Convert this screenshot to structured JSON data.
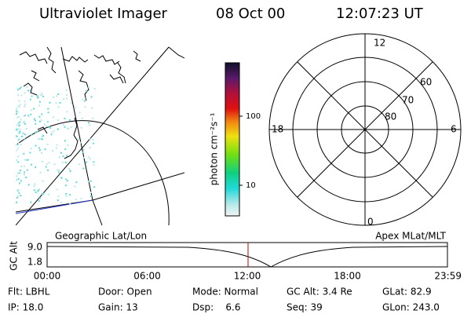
{
  "header": {
    "title": "Ultraviolet Imager",
    "date": "08 Oct 00",
    "time": "12:07:23 UT"
  },
  "colorbar": {
    "label": "photon cm⁻²s⁻¹",
    "ticks": [
      "100",
      "10"
    ]
  },
  "polar": {
    "mlt_labels": [
      "12",
      "6",
      "0",
      "18"
    ],
    "mlat_labels": [
      "60",
      "70",
      "80"
    ]
  },
  "panel_titles": {
    "left": "Geographic Lat/Lon",
    "right": "Apex MLat/MLT"
  },
  "altitude_plot": {
    "ylabel": "GC Alt",
    "yticks": [
      "9.0",
      "1.8"
    ],
    "xticks": [
      "00:00",
      "06:00",
      "12:00",
      "18:00",
      "23:59"
    ]
  },
  "info": [
    [
      "Flt: LBHL",
      "Door: Open",
      "Mode: Normal",
      "GC Alt: 3.4 Re",
      "GLat: 82.9"
    ],
    [
      "IP: 18.0",
      "Gain: 13",
      "Dsp:    6.6",
      "Seq: 39",
      "GLon: 243.0"
    ]
  ]
}
